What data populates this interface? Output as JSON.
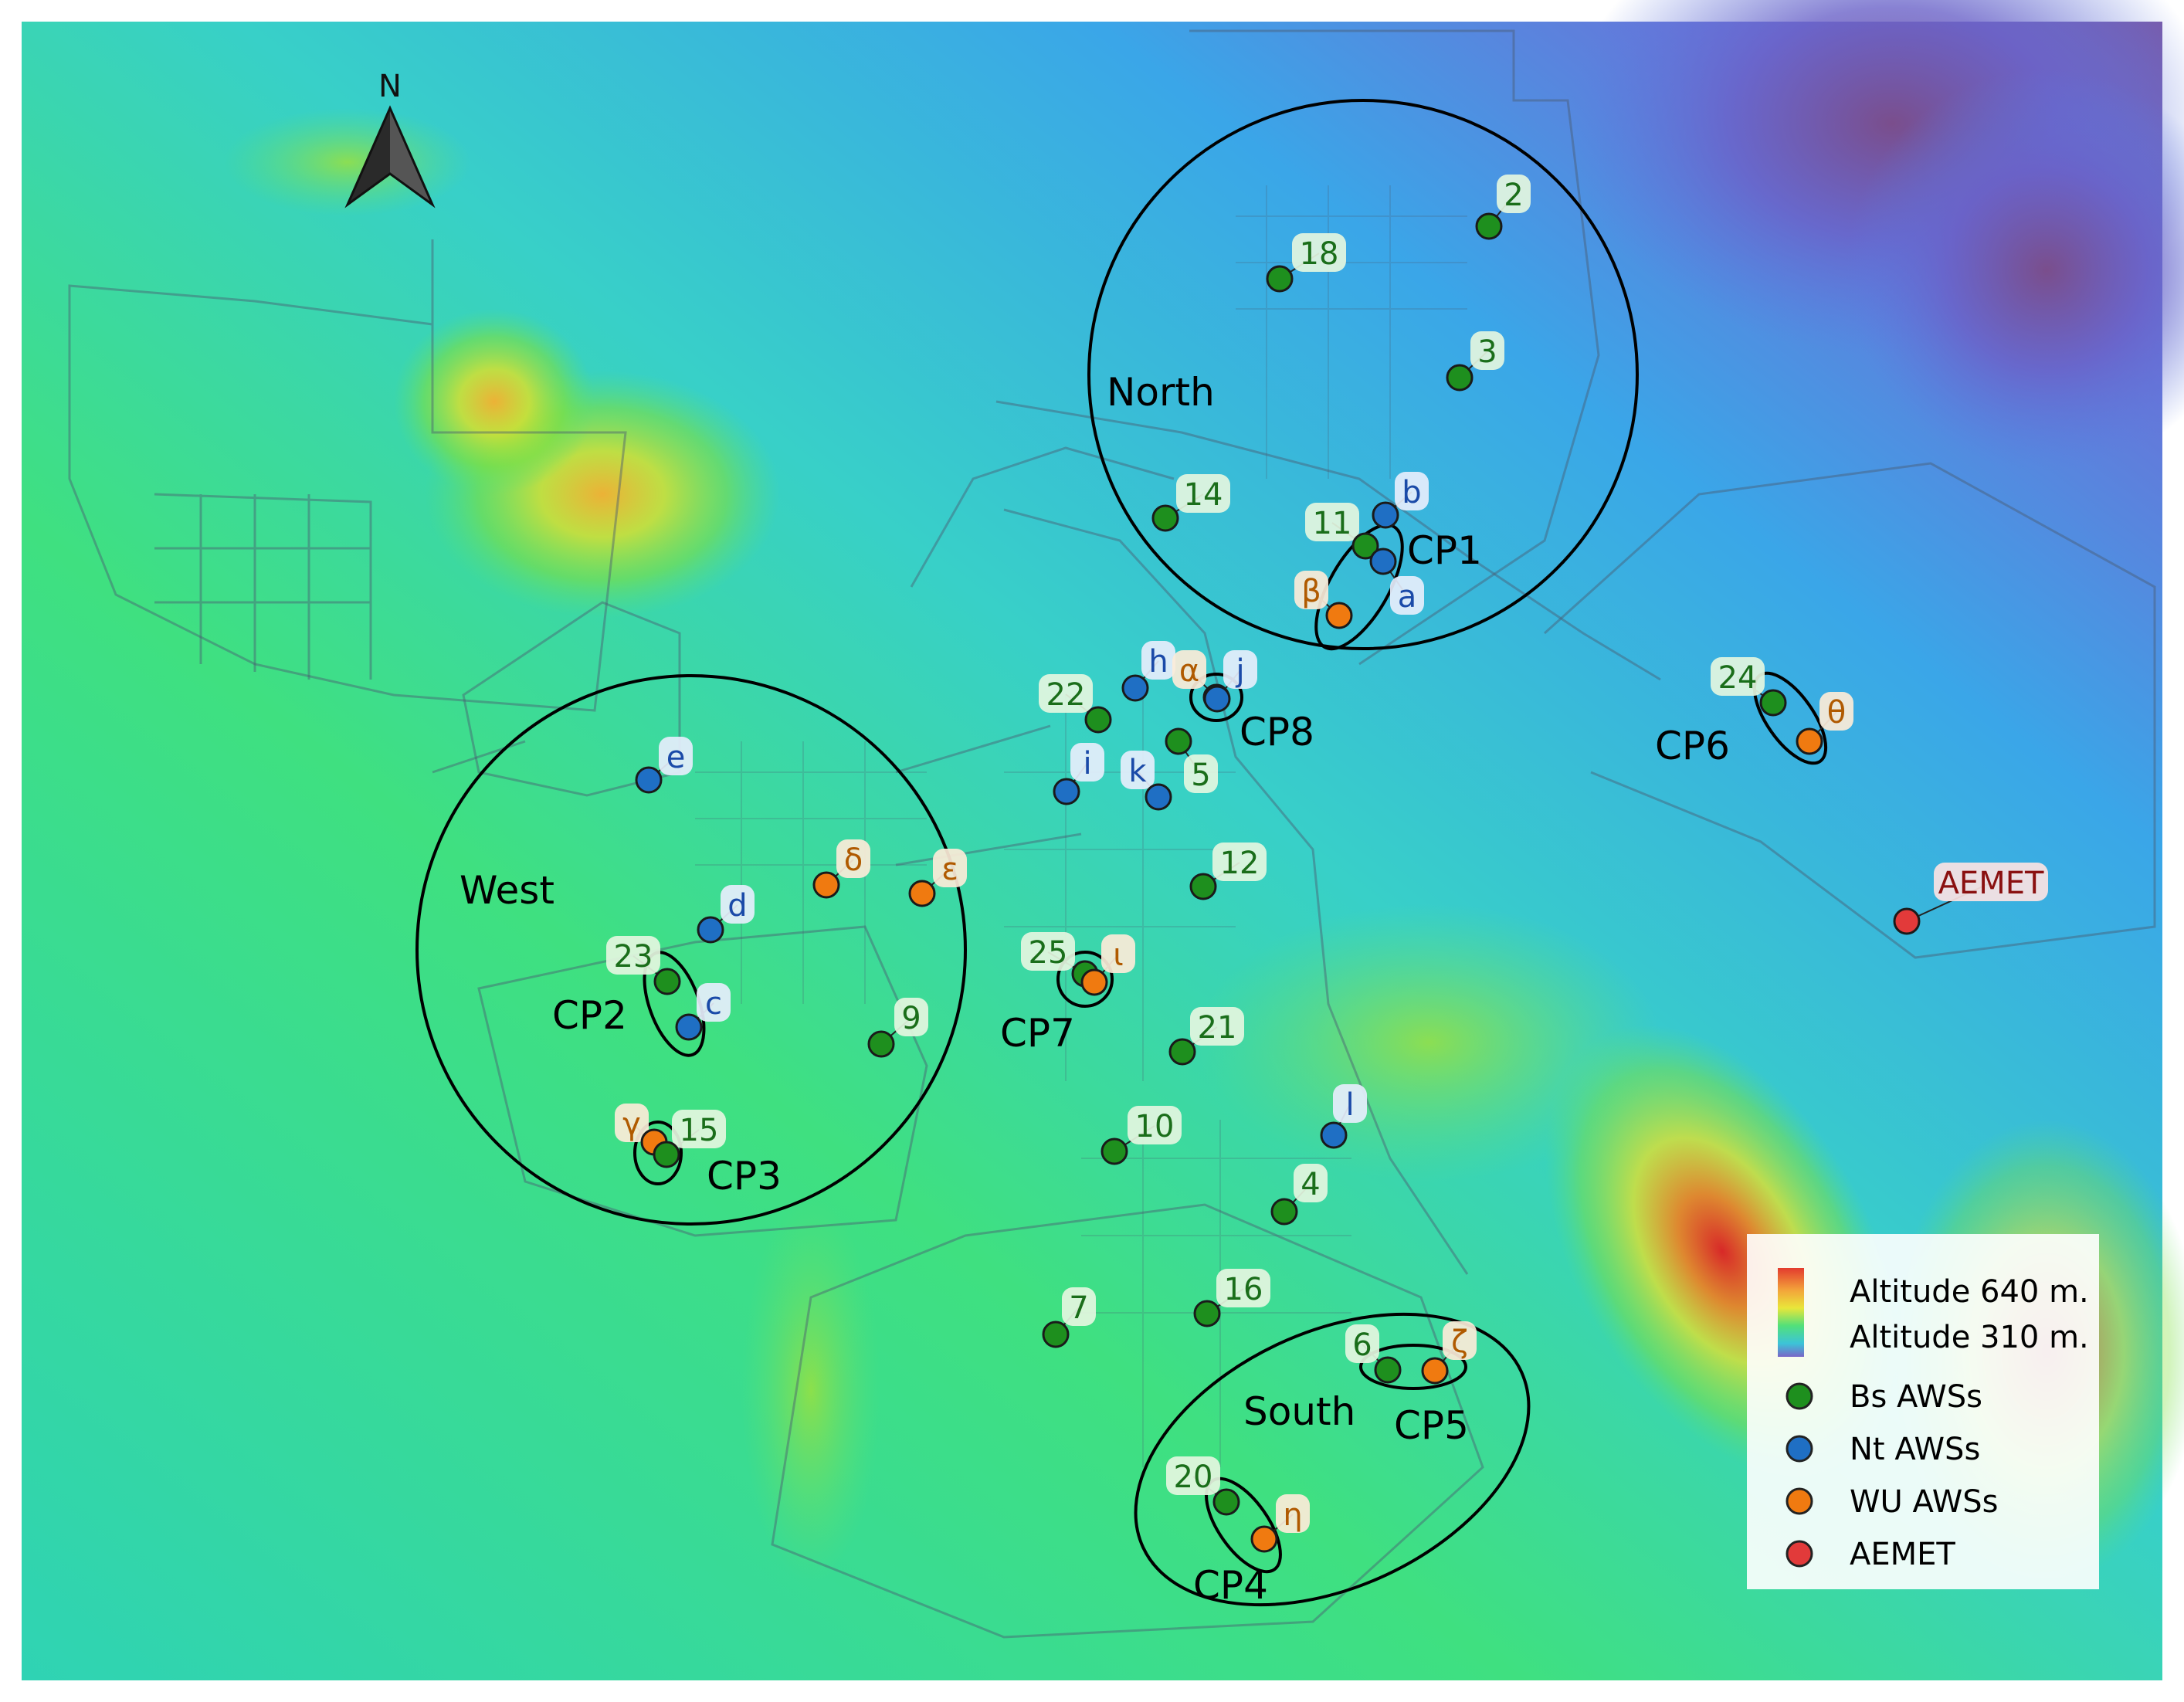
{
  "map": {
    "north_label": "N",
    "regions": {
      "north": "North",
      "west": "West",
      "south": "South"
    },
    "clusters": {
      "cp1": "CP1",
      "cp2": "CP2",
      "cp3": "CP3",
      "cp4": "CP4",
      "cp5": "CP5",
      "cp6": "CP6",
      "cp7": "CP7",
      "cp8": "CP8"
    },
    "stations": {
      "s2": "2",
      "s18": "18",
      "s3": "3",
      "s14": "14",
      "s11": "11",
      "s22": "22",
      "s5": "5",
      "s24": "24",
      "s12": "12",
      "s23": "23",
      "s9": "9",
      "s25": "25",
      "s21": "21",
      "s15": "15",
      "s10": "10",
      "s4": "4",
      "s16": "16",
      "s7": "7",
      "s6": "6",
      "s20": "20",
      "b": "b",
      "a": "a",
      "h": "h",
      "j": "j",
      "i": "i",
      "k": "k",
      "e": "e",
      "d": "d",
      "c": "c",
      "l": "l",
      "beta": "β",
      "alpha": "α",
      "theta": "θ",
      "delta": "δ",
      "epsilon": "ε",
      "iota": "ι",
      "gamma": "γ",
      "zeta": "ζ",
      "eta": "η",
      "aemet": "AEMET"
    }
  },
  "legend": {
    "alt_high": "Altitude 640 m.",
    "alt_low": "Altitude 310 m.",
    "bs": "Bs AWSs",
    "nt": "Nt AWSs",
    "wu": "WU AWSs",
    "aemet": "AEMET"
  },
  "colors": {
    "bs": "#1e8f1e",
    "nt": "#1f6fc4",
    "wu": "#f07a10",
    "aemet": "#e23a3a",
    "bs_text": "#1a6e1a",
    "nt_text": "#1a4aa8",
    "wu_text": "#b05a00",
    "aemet_text": "#8a1010"
  }
}
